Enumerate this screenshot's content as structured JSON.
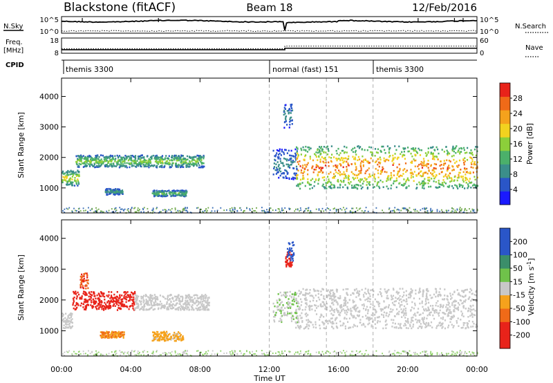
{
  "header": {
    "site": "Blackstone (fitACF)",
    "beam": "Beam 18",
    "date": "12/Feb/2016"
  },
  "panels": {
    "nsky_label": "N.Sky",
    "nsky_ticks": [
      "10^5",
      "10^0"
    ],
    "nsearch_label": "N.Search",
    "nsearch_ticks": [
      "10^5",
      "10^0"
    ],
    "freq_label_1": "Freq.",
    "freq_label_2": "[MHz]",
    "freq_ticks": [
      "18",
      "8"
    ],
    "nave_label": "Nave",
    "nave_ticks": [
      "60",
      "0"
    ],
    "cpid_label": "CPID",
    "cpid_segments": [
      {
        "label": "themis 3300",
        "start_h": 0
      },
      {
        "label": "normal (fast) 151",
        "start_h": 12
      },
      {
        "label": "themis 3300",
        "start_h": 18
      }
    ]
  },
  "axes": {
    "x_label": "Time UT",
    "x_ticks": [
      "00:00",
      "04:00",
      "08:00",
      "12:00",
      "16:00",
      "20:00",
      "00:00"
    ],
    "x_range_h": [
      0,
      24
    ],
    "y_label": "Slant Range [km]",
    "y_ticks": [
      "1000",
      "2000",
      "3000",
      "4000"
    ],
    "y_range_km": [
      180,
      4600
    ]
  },
  "colorbars": {
    "power_label": "Power [dB]",
    "power_ticks": [
      "4",
      "8",
      "12",
      "16",
      "20",
      "24",
      "28"
    ],
    "power_range": [
      0,
      32
    ],
    "velocity_label": "Velocity [m s",
    "velocity_sup": "-1",
    "velocity_close": "]",
    "velocity_ticks": [
      "-200",
      "-100",
      "-50",
      "-15",
      "15",
      "50",
      "100",
      "200"
    ]
  },
  "colors": {
    "power_scale": [
      "#1a1aff",
      "#2a56c8",
      "#3b8e8a",
      "#4bb06a",
      "#8ccf3a",
      "#f2d21f",
      "#f5a21c",
      "#f06a18",
      "#e8231a"
    ],
    "velocity_scale": [
      "#e8231a",
      "#f06a18",
      "#f5a21c",
      "#c8c8c8",
      "#6fc24a",
      "#3b8e6a",
      "#2a56c8"
    ],
    "ground_scatter": "#c0c0c0"
  },
  "chart_data": {
    "type": "heatmap",
    "title": "Blackstone (fitACF) Beam 18 12/Feb/2016",
    "xlabel": "Time UT",
    "ylabel": "Slant Range [km]",
    "xlim_hours": [
      0,
      24
    ],
    "ylim_km": [
      180,
      4600
    ],
    "grid": false,
    "cpid_changes_h": [
      12.0,
      18.0
    ],
    "freq_mhz": [
      {
        "start_h": 0,
        "end_h": 12.9,
        "value": 10.3
      },
      {
        "start_h": 12.9,
        "end_h": 24,
        "value": 11.3
      }
    ],
    "nave": [
      {
        "start_h": 0,
        "end_h": 12.9,
        "value": 18
      },
      {
        "start_h": 12.9,
        "end_h": 24,
        "value": 28
      }
    ],
    "power_features": [
      {
        "t0": 0.0,
        "t1": 1.0,
        "r0": 1100,
        "r1": 1600,
        "peak_db": 22
      },
      {
        "t0": 0.8,
        "t1": 8.2,
        "r0": 1700,
        "r1": 2100,
        "peak_db": 18
      },
      {
        "t0": 2.5,
        "t1": 3.5,
        "r0": 800,
        "r1": 1000,
        "peak_db": 12
      },
      {
        "t0": 5.2,
        "t1": 7.2,
        "r0": 750,
        "r1": 950,
        "peak_db": 16
      },
      {
        "t0": 12.2,
        "t1": 13.6,
        "r0": 1300,
        "r1": 2300,
        "peak_db": 10
      },
      {
        "t0": 12.8,
        "t1": 13.3,
        "r0": 3000,
        "r1": 3800,
        "peak_db": 10
      },
      {
        "t0": 13.5,
        "t1": 24.0,
        "r0": 1000,
        "r1": 2400,
        "peak_db": 30
      }
    ],
    "velocity_features": [
      {
        "t0": 0.0,
        "t1": 0.6,
        "r0": 1100,
        "r1": 1600,
        "velocity": 0
      },
      {
        "t0": 0.6,
        "t1": 4.2,
        "r0": 1700,
        "r1": 2300,
        "velocity": -200
      },
      {
        "t0": 1.0,
        "t1": 1.5,
        "r0": 2400,
        "r1": 2900,
        "velocity": -150
      },
      {
        "t0": 4.2,
        "t1": 8.5,
        "r0": 1700,
        "r1": 2200,
        "velocity": 0
      },
      {
        "t0": 2.2,
        "t1": 3.6,
        "r0": 800,
        "r1": 1000,
        "velocity": -75
      },
      {
        "t0": 5.2,
        "t1": 7.0,
        "r0": 700,
        "r1": 1000,
        "velocity": -40
      },
      {
        "t0": 12.2,
        "t1": 13.6,
        "r0": 1300,
        "r1": 2300,
        "velocity": 20
      },
      {
        "t0": 12.9,
        "t1": 13.3,
        "r0": 3100,
        "r1": 3600,
        "velocity": -200
      },
      {
        "t0": 13.0,
        "t1": 13.4,
        "r0": 3300,
        "r1": 3900,
        "velocity": 200
      },
      {
        "t0": 13.5,
        "t1": 24.0,
        "r0": 1100,
        "r1": 2400,
        "velocity": 0
      }
    ]
  }
}
